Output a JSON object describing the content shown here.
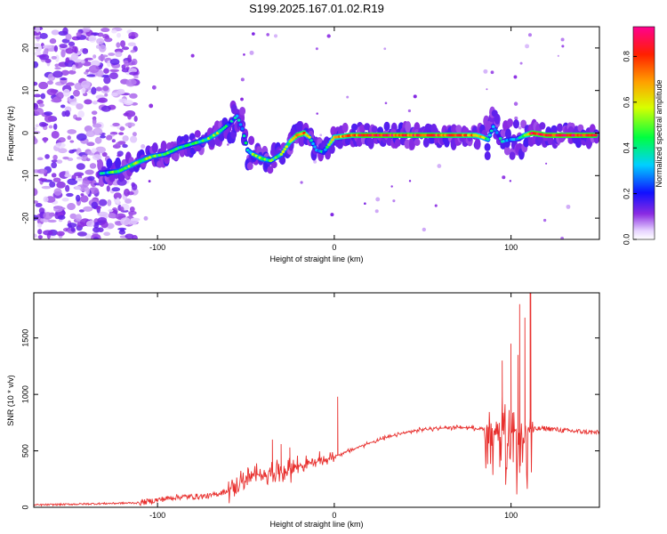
{
  "title": "S199.2025.167.01.02.R19",
  "chart_data": [
    {
      "type": "heatmap",
      "xlabel": "Height of straight line (km)",
      "ylabel": "Frequency (Hz)",
      "xlim": [
        -170,
        150
      ],
      "ylim": [
        -25,
        25
      ],
      "x_ticks": [
        -100,
        0,
        100
      ],
      "y_ticks": [
        20,
        10,
        0,
        -10,
        -20
      ],
      "colorbar": {
        "label": "Normalized spectral amplitude",
        "range": [
          0.0,
          0.93
        ],
        "ticks": [
          0.0,
          0.2,
          0.4,
          0.6,
          0.8
        ],
        "tick_labels": [
          "0.0",
          "0.2",
          "0.4",
          "0.6",
          "0.8"
        ]
      },
      "ridge": {
        "x": [
          -132,
          -122,
          -112,
          -103,
          -96,
          -88,
          -80,
          -72,
          -66,
          -60,
          -55,
          -52,
          -49,
          -46,
          -41,
          -36,
          -30,
          -25,
          -21,
          -17,
          -14,
          -10,
          -6,
          0,
          10,
          20,
          40,
          60,
          80,
          84,
          87,
          90,
          95,
          100,
          103,
          108,
          112,
          120,
          135,
          148
        ],
        "freq": [
          -9.5,
          -9,
          -7,
          -5.5,
          -5,
          -3.5,
          -2.5,
          -1.5,
          0,
          2,
          4,
          1,
          -4,
          -5,
          -6,
          -6.5,
          -5,
          -2,
          -0.5,
          0,
          -1,
          -4,
          -4.5,
          -1,
          -0.5,
          -0.5,
          -0.5,
          -0.5,
          -0.5,
          -1,
          -1.5,
          1.5,
          -2,
          -1.5,
          -1.5,
          -0.5,
          0,
          -0.5,
          -0.5,
          -0.5
        ],
        "amplitude": [
          0.35,
          0.5,
          0.55,
          0.5,
          0.45,
          0.45,
          0.42,
          0.5,
          0.55,
          0.35,
          0.3,
          0.35,
          0.4,
          0.5,
          0.55,
          0.45,
          0.5,
          0.6,
          0.85,
          0.8,
          0.5,
          0.3,
          0.35,
          0.7,
          0.8,
          0.9,
          0.85,
          0.85,
          0.75,
          0.6,
          0.5,
          0.35,
          0.3,
          0.35,
          0.3,
          0.6,
          0.9,
          0.9,
          0.9,
          0.85
        ]
      }
    },
    {
      "type": "line",
      "xlabel": "Height of straight line (km)",
      "ylabel": "SNR (10 * v/v)",
      "xlim": [
        -170,
        150
      ],
      "ylim": [
        0,
        1900
      ],
      "x_ticks": [
        -100,
        0,
        100
      ],
      "y_ticks": [
        0,
        500,
        1000,
        1500
      ],
      "color": "#e8302e",
      "baseline": {
        "x": [
          -170,
          -110,
          -90,
          -70,
          -60,
          -50,
          -40,
          -30,
          -20,
          -10,
          0,
          10,
          20,
          30,
          40,
          50,
          60,
          70,
          80,
          90,
          100,
          108,
          112,
          120,
          130,
          140,
          150
        ],
        "y": [
          20,
          40,
          90,
          100,
          150,
          250,
          300,
          320,
          370,
          400,
          450,
          510,
          570,
          620,
          660,
          690,
          700,
          710,
          700,
          690,
          680,
          700,
          690,
          700,
          680,
          670,
          660
        ]
      },
      "spikes": [
        {
          "x": -35,
          "y": 600
        },
        {
          "x": -30,
          "y": 560
        },
        {
          "x": -25,
          "y": 530
        },
        {
          "x": 2,
          "y": 980
        },
        {
          "x": 95,
          "y": 1300
        },
        {
          "x": 100,
          "y": 1450
        },
        {
          "x": 104,
          "y": 1350
        },
        {
          "x": 105,
          "y": 1800
        },
        {
          "x": 108,
          "y": 1680
        },
        {
          "x": 111,
          "y": 1900
        }
      ]
    }
  ]
}
